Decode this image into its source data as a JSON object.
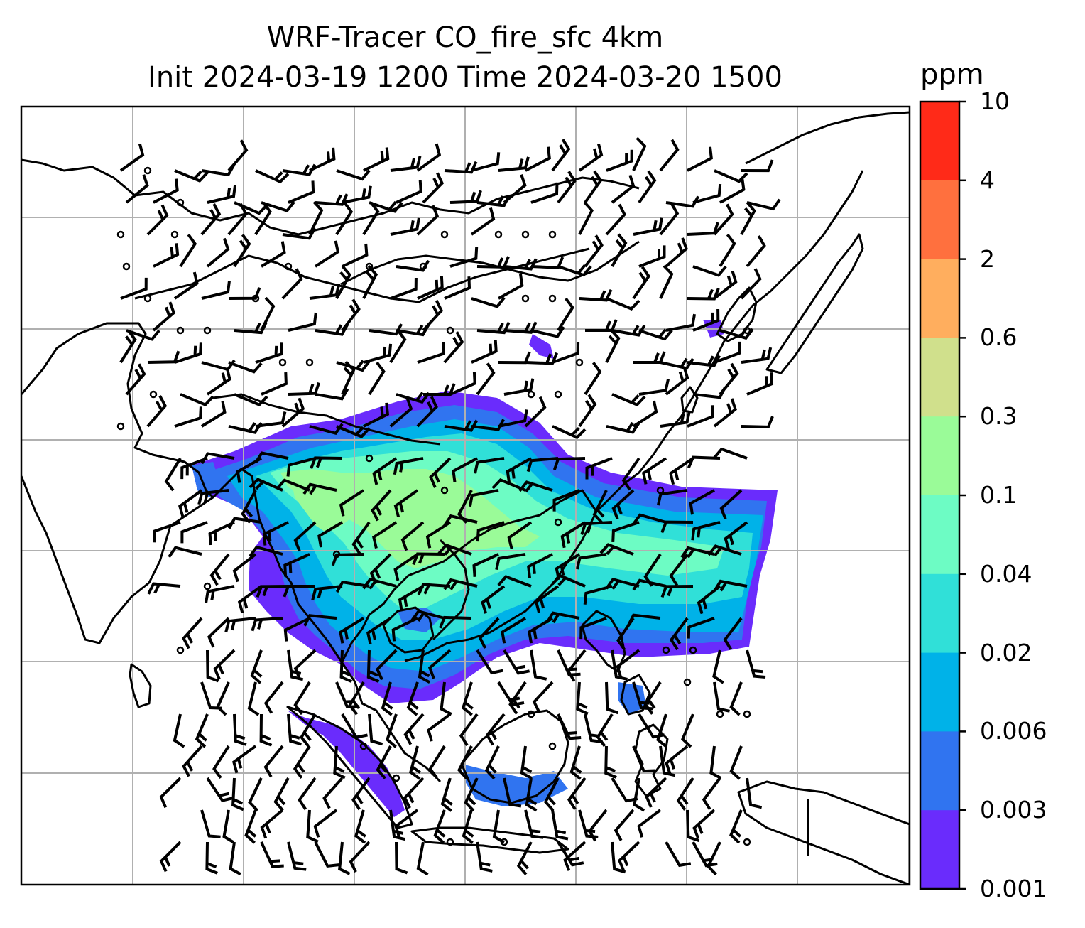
{
  "title": {
    "line1": "WRF-Tracer CO_fire_sfc 4km",
    "line2": "Init 2024-03-19 1200 Time 2024-03-20 1500"
  },
  "colorbar": {
    "unit": "ppm",
    "levels": [
      "10",
      "4",
      "2",
      "0.6",
      "0.3",
      "0.1",
      "0.04",
      "0.02",
      "0.006",
      "0.003",
      "0.001"
    ],
    "colors": [
      "#ff2a18",
      "#ff703e",
      "#ffae5e",
      "#d0e08c",
      "#9afb98",
      "#6dfcc4",
      "#30e0d8",
      "#00b2e8",
      "#3074f0",
      "#6a2cfc"
    ]
  },
  "map": {
    "grid": "on",
    "coastline_color": "#000000",
    "gridline_color": "#b0b0b0",
    "plume_colors": [
      "#6a2cfc",
      "#3074f0",
      "#00b2e8",
      "#30e0d8",
      "#6dfcc4",
      "#9afb98"
    ]
  }
}
